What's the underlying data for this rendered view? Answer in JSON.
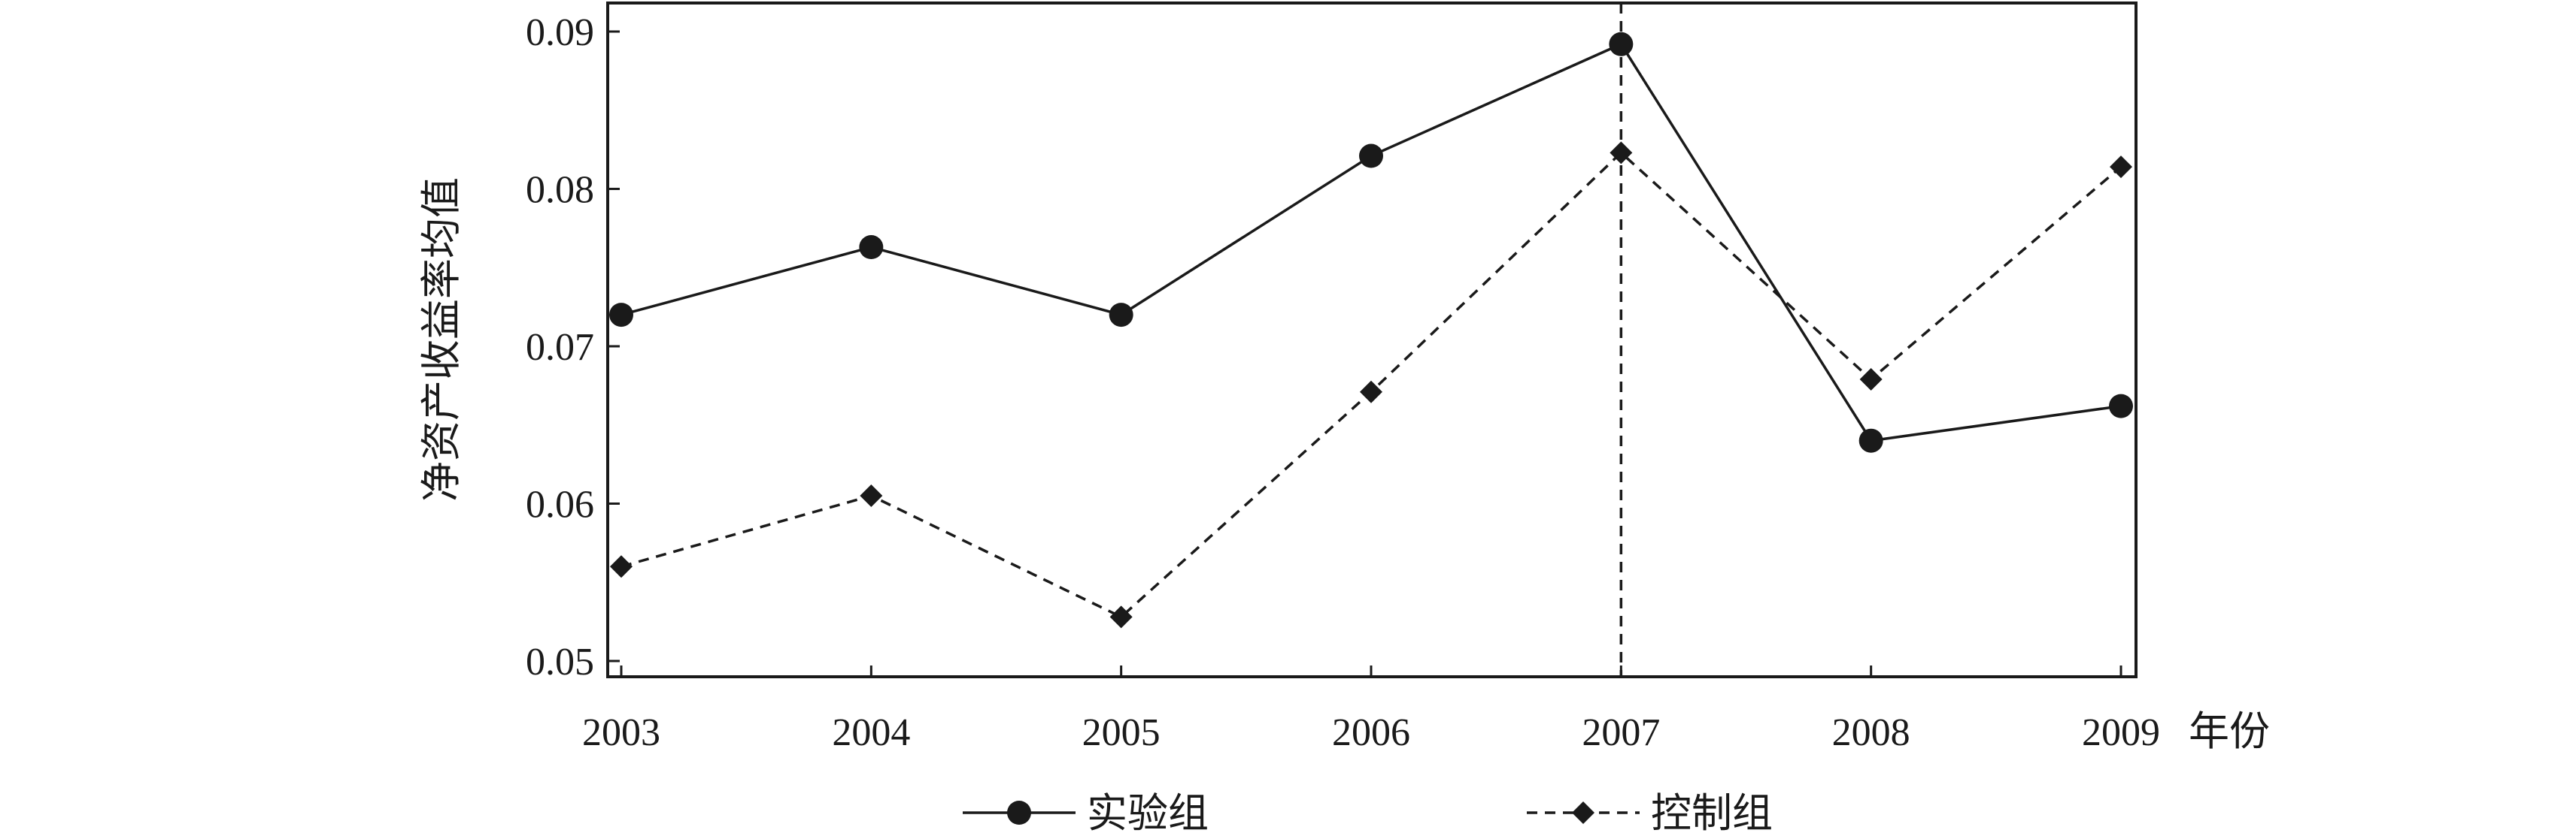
{
  "chart_data": {
    "type": "line",
    "categories": [
      "2003",
      "2004",
      "2005",
      "2006",
      "2007",
      "2008",
      "2009"
    ],
    "series": [
      {
        "name": "实验组",
        "values": [
          0.072,
          0.0763,
          0.072,
          0.0821,
          0.0892,
          0.064,
          0.0662
        ],
        "line_style": "solid",
        "marker": "circle"
      },
      {
        "name": "控制组",
        "values": [
          0.056,
          0.0605,
          0.0528,
          0.0671,
          0.0823,
          0.0679,
          0.0814
        ],
        "line_style": "dashed",
        "marker": "diamond"
      }
    ],
    "xlabel": "年份",
    "ylabel": "净资产收益率均值",
    "ylim": [
      0.05,
      0.09
    ],
    "yticks": [
      "0.05",
      "0.06",
      "0.07",
      "0.08",
      "0.09"
    ],
    "reference_line": {
      "x": "2007",
      "style": "dashed"
    },
    "grid": false,
    "legend_position": "bottom",
    "colors": {
      "line": "#1a1a1a",
      "background": "#ffffff"
    }
  }
}
